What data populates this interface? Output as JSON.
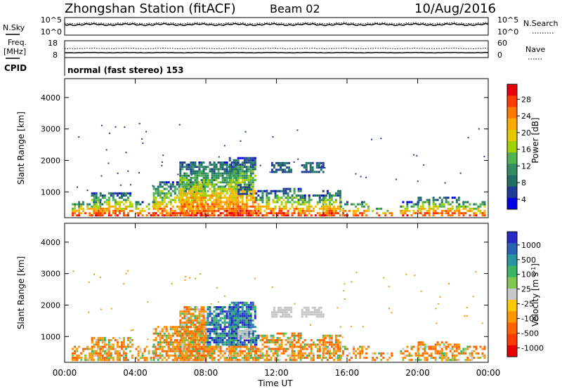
{
  "header": {
    "station": "Zhongshan Station (fitACF)",
    "beam": "Beam 02",
    "date": "10/Aug/2016"
  },
  "panels": {
    "nsky": {
      "left_label": "N.Sky",
      "left_ticks": [
        "10^5",
        "10^0"
      ],
      "right_label": "N.Search",
      "right_ticks": [
        "10^5",
        "10^0"
      ]
    },
    "freq": {
      "left_label_1": "Freq.",
      "left_label_2": "[MHz]",
      "left_ticks": [
        "18",
        "8"
      ],
      "right_label": "Nave",
      "right_ticks": [
        "60",
        "0"
      ]
    },
    "cpid": {
      "label": "CPID",
      "text": "normal (fast stereo) 153"
    }
  },
  "colorbars": {
    "power": {
      "label": "Power [dB]",
      "ticks": [
        "28",
        "24",
        "20",
        "16",
        "12",
        "8",
        "4"
      ],
      "colors": [
        "#e8000b",
        "#ff3c00",
        "#ff7800",
        "#ffaa00",
        "#e6c800",
        "#a0d200",
        "#50b450",
        "#328c64",
        "#1e6e64",
        "#1e3c96",
        "#0000e6"
      ]
    },
    "velocity": {
      "label": "Velocity [m s",
      "label_sup": "-1",
      "label_end": "]",
      "ticks": [
        "1000",
        "500",
        "100",
        "25",
        "-25",
        "-100",
        "-500",
        "-1000"
      ],
      "colors": [
        "#2828c8",
        "#2864b4",
        "#2896a0",
        "#3cb464",
        "#82c850",
        "#c8c8c8",
        "#ffc800",
        "#ff9600",
        "#ff6400",
        "#ff3c00",
        "#e80000"
      ]
    }
  },
  "chart_data": [
    {
      "type": "heatmap",
      "name": "power",
      "ylabel": "Slant Range [km]",
      "yticks": [
        1000,
        2000,
        3000,
        4000
      ],
      "ylim": [
        180,
        4600
      ],
      "xlim": [
        0,
        24
      ],
      "color_range": [
        0,
        31
      ]
    },
    {
      "type": "heatmap",
      "name": "velocity",
      "ylabel": "Slant Range [km]",
      "yticks": [
        1000,
        2000,
        3000,
        4000
      ],
      "ylim": [
        180,
        4600
      ],
      "xlim": [
        0,
        24
      ],
      "color_range": [
        -1000,
        1000
      ]
    }
  ],
  "xaxis": {
    "label": "Time UT",
    "ticks": [
      "00:00",
      "04:00",
      "08:00",
      "12:00",
      "16:00",
      "20:00",
      "00:00"
    ]
  }
}
